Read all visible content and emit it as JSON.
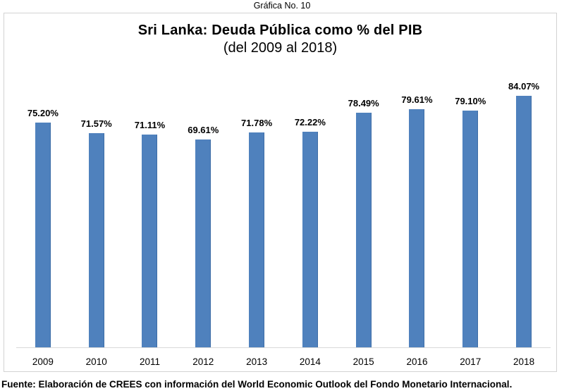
{
  "header": {
    "caption": "Gráfica No. 10"
  },
  "chart": {
    "title": "Sri Lanka: Deuda Pública como % del PIB",
    "subtitle": "(del 2009 al 2018)"
  },
  "footer": {
    "source": "Fuente: Elaboración de CREES con información del World Economic Outlook del Fondo Monetario Internacional."
  },
  "chart_data": {
    "type": "bar",
    "title": "Sri Lanka: Deuda Pública como % del PIB",
    "subtitle": "(del 2009 al 2018)",
    "categories": [
      "2009",
      "2010",
      "2011",
      "2012",
      "2013",
      "2014",
      "2015",
      "2016",
      "2017",
      "2018"
    ],
    "values": [
      75.2,
      71.57,
      71.11,
      69.61,
      71.78,
      72.22,
      78.49,
      79.61,
      79.1,
      84.07
    ],
    "value_labels": [
      "75.20%",
      "71.57%",
      "71.11%",
      "69.61%",
      "71.78%",
      "72.22%",
      "78.49%",
      "79.61%",
      "79.10%",
      "84.07%"
    ],
    "xlabel": "",
    "ylabel": "",
    "ylim": [
      0,
      90
    ],
    "grid": false,
    "legend": "none",
    "bar_color": "#4F81BD",
    "bar_edge_color": "#3d6da6",
    "axis_line_color": "#D9D9D9",
    "frame_color": "#D2D2D2"
  }
}
